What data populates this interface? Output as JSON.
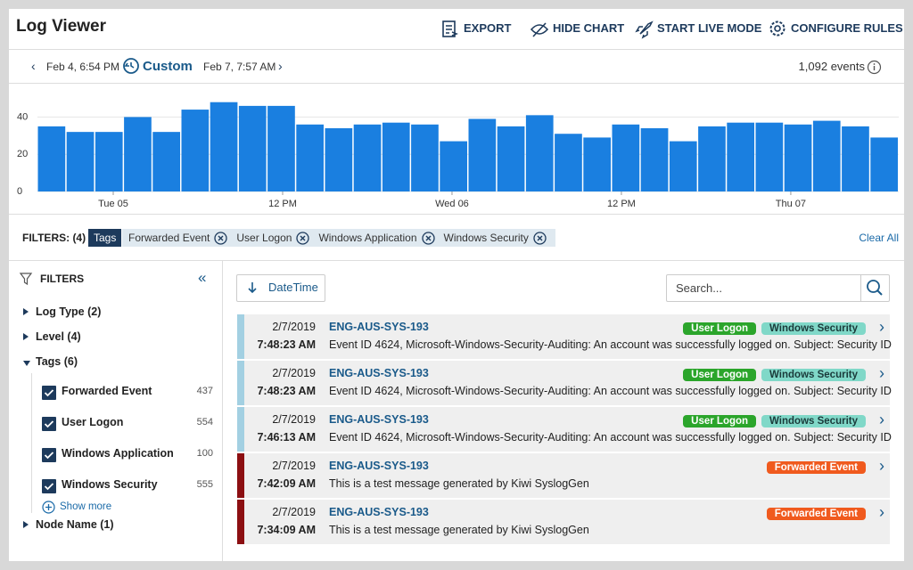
{
  "header": {
    "title": "Log Viewer",
    "actions": [
      "EXPORT",
      "HIDE CHART",
      "START LIVE MODE",
      "CONFIGURE RULES"
    ]
  },
  "range": {
    "start": "Feb 4, 6:54 PM",
    "mode": "Custom",
    "end": "Feb 7, 7:57 AM",
    "count": "1,092 events"
  },
  "chart_data": {
    "type": "bar",
    "color": "#1a7fe0",
    "categories": [
      null,
      null,
      null,
      null,
      null,
      null,
      null,
      null,
      null,
      null,
      null,
      null,
      null,
      null,
      null,
      null,
      null,
      null,
      null,
      null,
      null,
      null,
      null,
      null,
      null,
      null,
      null,
      null,
      null,
      null
    ],
    "values": [
      35,
      32,
      32,
      40,
      32,
      44,
      48,
      46,
      46,
      36,
      34,
      36,
      37,
      36,
      27,
      39,
      35,
      41,
      31,
      29,
      36,
      34,
      27,
      35,
      37,
      37,
      36,
      38,
      35,
      29
    ],
    "ylim": [
      0,
      56
    ],
    "yticks": [
      0,
      20,
      40
    ],
    "grid": true,
    "xlim": [
      0,
      30
    ],
    "xticks": [
      {
        "value": 2.64,
        "label": "Tue 05"
      },
      {
        "value": 8.54,
        "label": "12 PM"
      },
      {
        "value": 14.44,
        "label": "Wed 06"
      },
      {
        "value": 20.34,
        "label": "12 PM"
      },
      {
        "value": 26.24,
        "label": "Thu 07"
      }
    ]
  },
  "filter_bar": {
    "label": "FILTERS: (4)",
    "group": "Tags",
    "chips": [
      "Forwarded Event",
      "User Logon",
      "Windows Application",
      "Windows Security"
    ],
    "clear": "Clear All"
  },
  "sidebar": {
    "title": "FILTERS",
    "groups": [
      {
        "label": "Log Type (2)"
      },
      {
        "label": "Level (4)"
      },
      {
        "label": "Tags (6)",
        "items": [
          {
            "label": "Forwarded Event",
            "count": 437
          },
          {
            "label": "User Logon",
            "count": 554
          },
          {
            "label": "Windows Application",
            "count": 100
          },
          {
            "label": "Windows Security",
            "count": 555
          }
        ],
        "more": "Show more"
      },
      {
        "label": "Node Name (1)"
      }
    ]
  },
  "list": {
    "sort": "DateTime",
    "search_placeholder": "Search...",
    "tag_colors": {
      "User Logon": "#2ba52b",
      "Windows Security": "#80d8c8",
      "Forwarded Event": "#f05a1e"
    },
    "rows": [
      {
        "date": "2/7/2019",
        "time": "7:48:23 AM",
        "host": "ENG-AUS-SYS-193",
        "message": "Event ID 4624, Microsoft-Windows-Security-Auditing: An account was successfully logged on. Subject: Security ID",
        "tags": [
          "User Logon",
          "Windows Security"
        ],
        "color": "#a3d0e2"
      },
      {
        "date": "2/7/2019",
        "time": "7:48:23 AM",
        "host": "ENG-AUS-SYS-193",
        "message": "Event ID 4624, Microsoft-Windows-Security-Auditing: An account was successfully logged on. Subject: Security ID",
        "tags": [
          "User Logon",
          "Windows Security"
        ],
        "color": "#a3d0e2"
      },
      {
        "date": "2/7/2019",
        "time": "7:46:13 AM",
        "host": "ENG-AUS-SYS-193",
        "message": "Event ID 4624, Microsoft-Windows-Security-Auditing: An account was successfully logged on. Subject: Security ID",
        "tags": [
          "User Logon",
          "Windows Security"
        ],
        "color": "#a3d0e2"
      },
      {
        "date": "2/7/2019",
        "time": "7:42:09 AM",
        "host": "ENG-AUS-SYS-193",
        "message": "This is a test message generated by Kiwi SyslogGen",
        "tags": [
          "Forwarded Event"
        ],
        "color": "#8c0f12"
      },
      {
        "date": "2/7/2019",
        "time": "7:34:09 AM",
        "host": "ENG-AUS-SYS-193",
        "message": "This is a test message generated by Kiwi SyslogGen",
        "tags": [
          "Forwarded Event"
        ],
        "color": "#8c0f12"
      }
    ]
  }
}
